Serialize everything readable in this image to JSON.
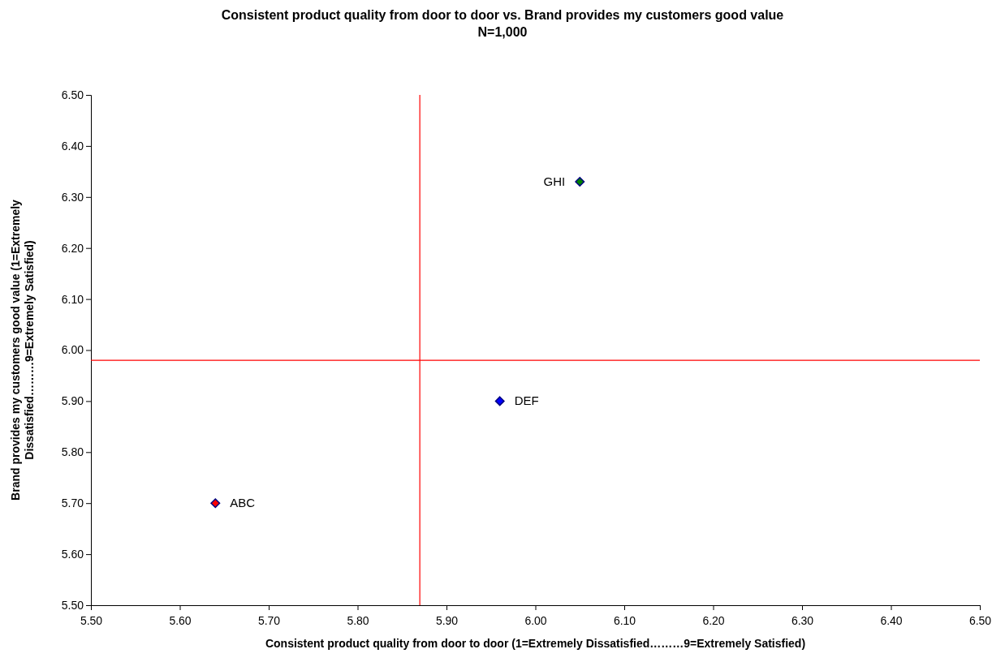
{
  "chart_data": {
    "type": "scatter",
    "title": "Consistent product quality from door to door vs. Brand provides my customers good value",
    "subtitle": "N=1,000",
    "xlabel": "Consistent product quality from door to door (1=Extremely Dissatisfied………9=Extremely Satisfied)",
    "ylabel": "Brand provides my customers good value (1=Extremely Dissatisfied………9=Extremely Satisfied)",
    "marker": "diamond",
    "series": [
      {
        "name": "ABC",
        "color": "#ff0000",
        "x": [
          5.64
        ],
        "values": [
          5.7
        ]
      },
      {
        "name": "DEF",
        "color": "#0000ff",
        "x": [
          5.96
        ],
        "values": [
          5.9
        ]
      },
      {
        "name": "GHI",
        "color": "#008000",
        "x": [
          6.05
        ],
        "values": [
          6.33
        ]
      }
    ],
    "ref_lines": [
      {
        "axis": "x",
        "value": 5.87,
        "color": "#ff0000"
      },
      {
        "axis": "y",
        "value": 5.98,
        "color": "#ff0000"
      }
    ],
    "xlim": [
      5.5,
      6.5
    ],
    "xticks": [
      {
        "value": 5.5,
        "label": "5.50"
      },
      {
        "value": 5.6,
        "label": "5.60"
      },
      {
        "value": 5.7,
        "label": "5.70"
      },
      {
        "value": 5.8,
        "label": "5.80"
      },
      {
        "value": 5.9,
        "label": "5.90"
      },
      {
        "value": 6.0,
        "label": "6.00"
      },
      {
        "value": 6.1,
        "label": "6.10"
      },
      {
        "value": 6.2,
        "label": "6.20"
      },
      {
        "value": 6.3,
        "label": "6.30"
      },
      {
        "value": 6.4,
        "label": "6.40"
      },
      {
        "value": 6.5,
        "label": "6.50"
      }
    ],
    "ylim": [
      5.5,
      6.5
    ],
    "yticks": [
      {
        "value": 5.5,
        "label": "5.50"
      },
      {
        "value": 5.6,
        "label": "5.60"
      },
      {
        "value": 5.7,
        "label": "5.70"
      },
      {
        "value": 5.8,
        "label": "5.80"
      },
      {
        "value": 5.9,
        "label": "5.90"
      },
      {
        "value": 6.0,
        "label": "6.00"
      },
      {
        "value": 6.1,
        "label": "6.10"
      },
      {
        "value": 6.2,
        "label": "6.20"
      },
      {
        "value": 6.3,
        "label": "6.30"
      },
      {
        "value": 6.4,
        "label": "6.40"
      },
      {
        "value": 6.5,
        "label": "6.50"
      }
    ]
  }
}
